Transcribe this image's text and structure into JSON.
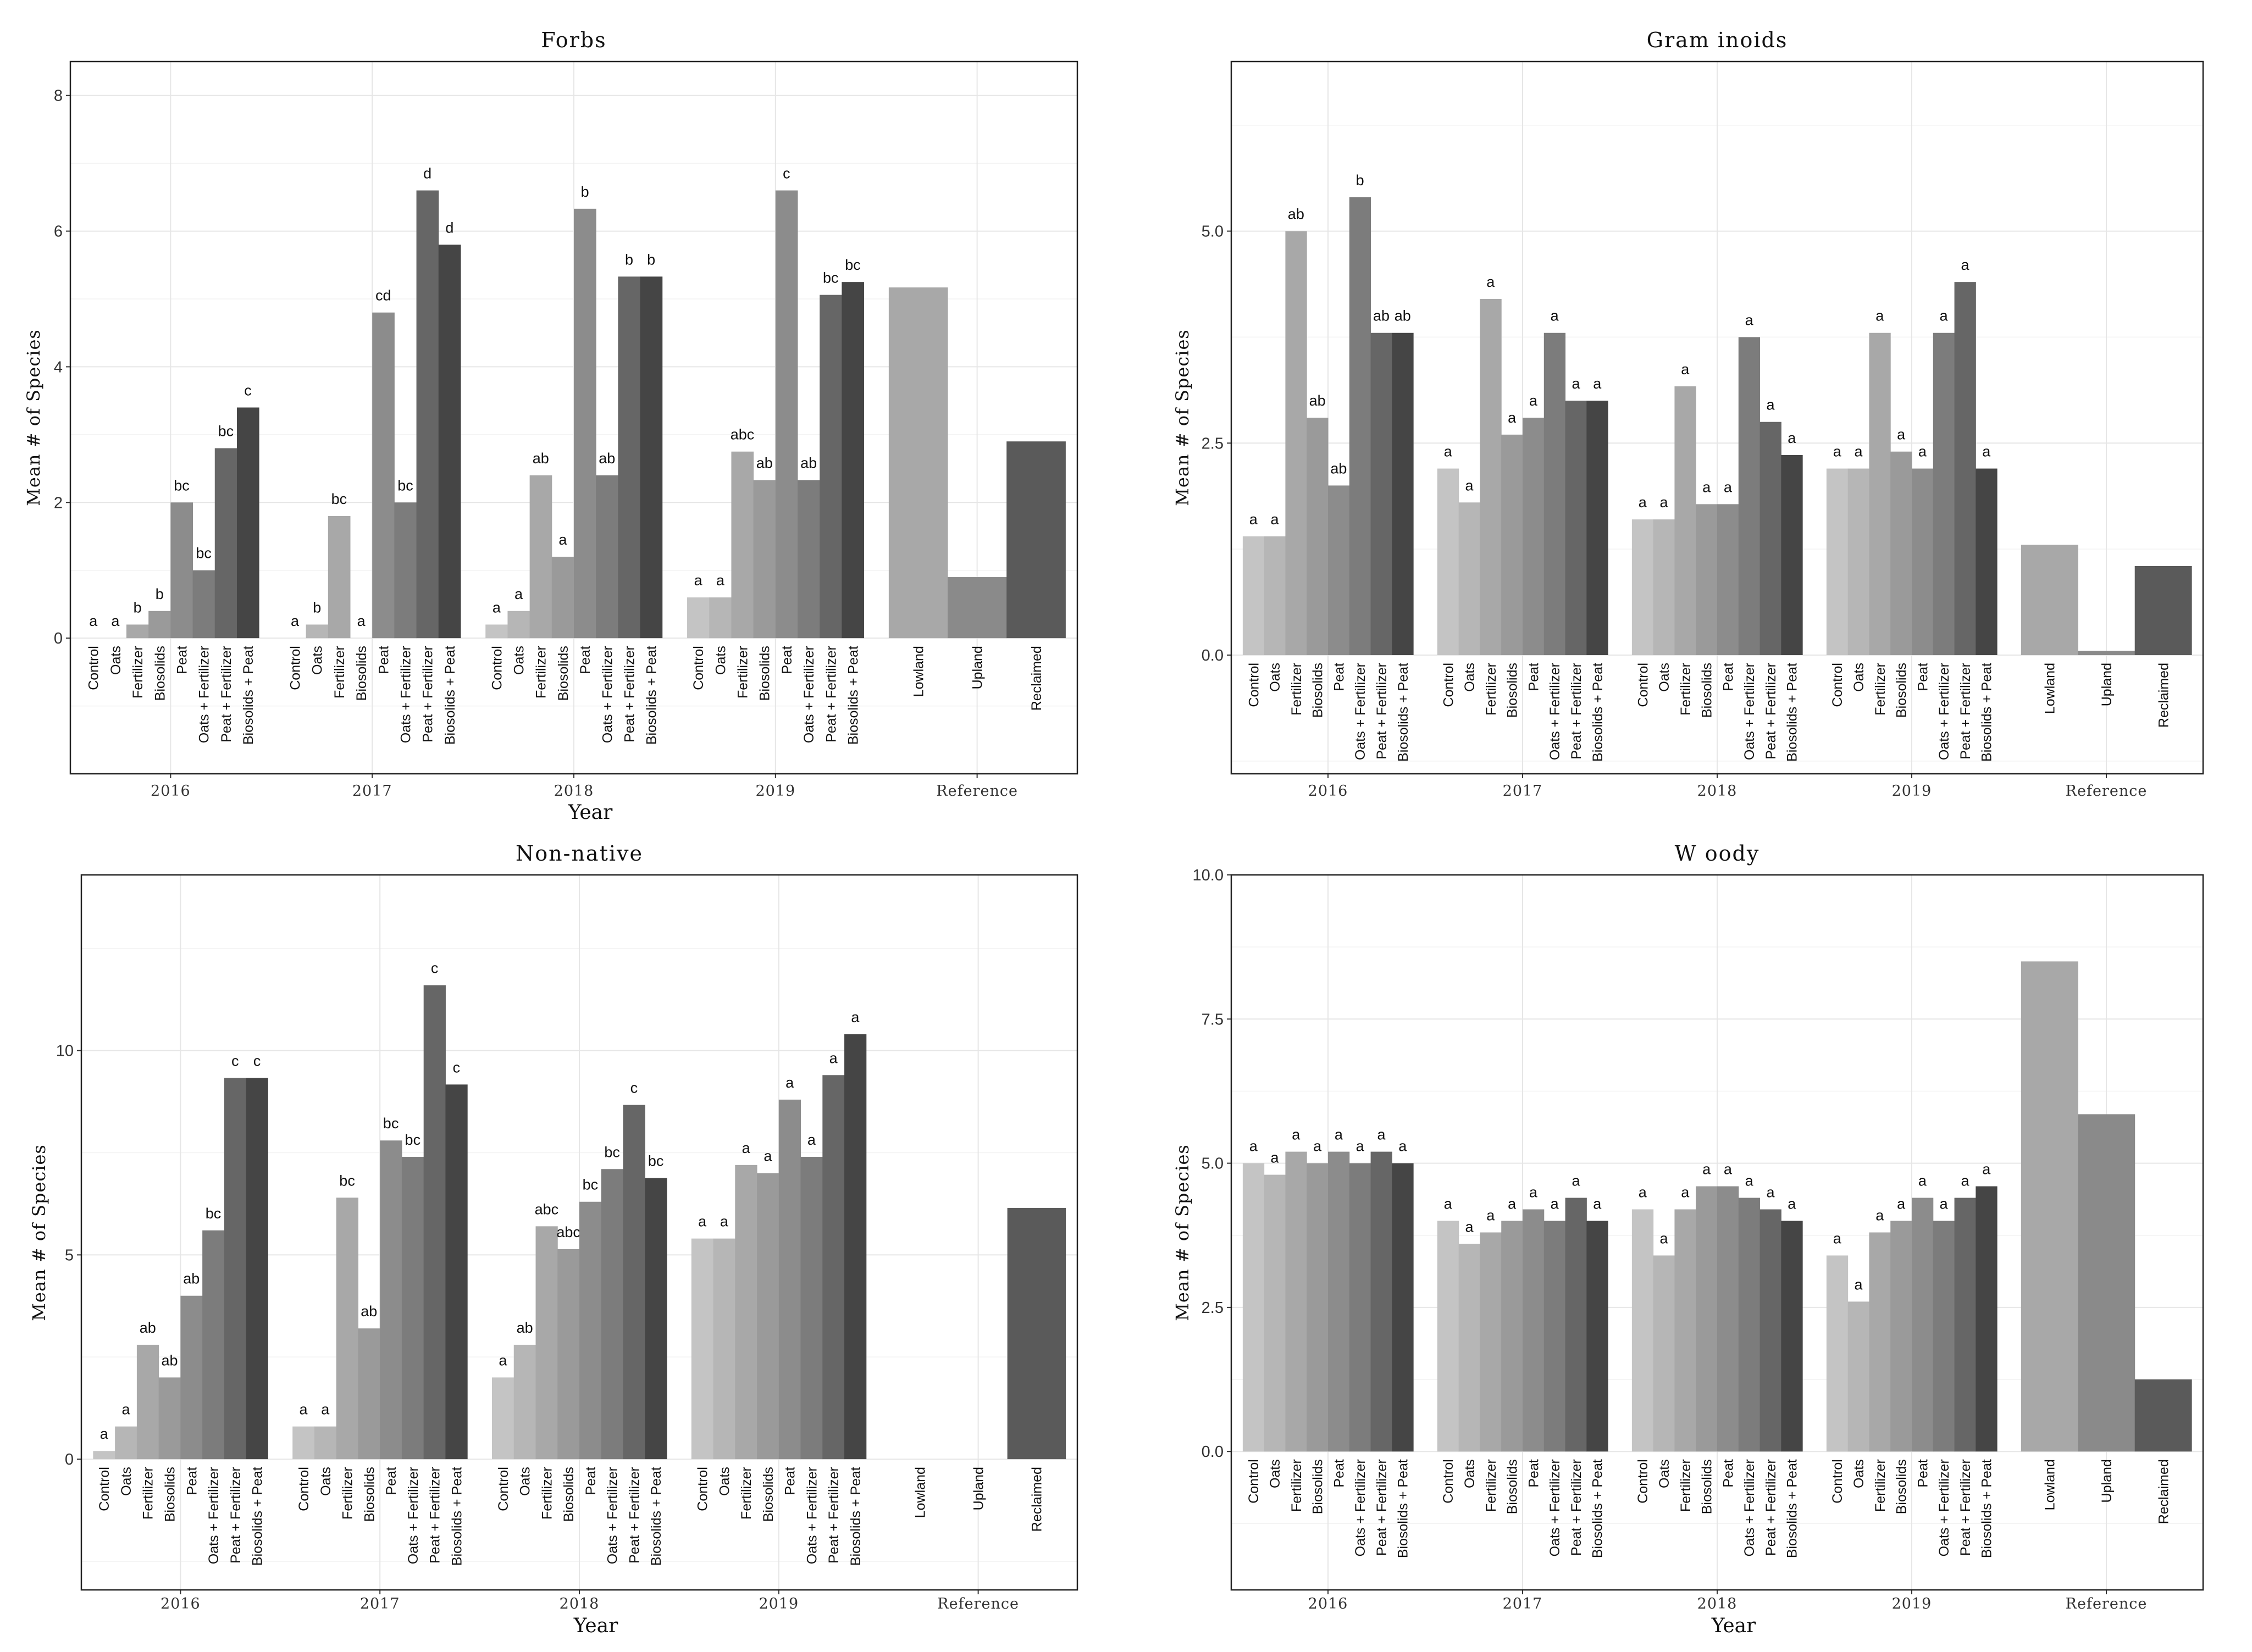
{
  "chart_data": [
    {
      "type": "bar",
      "title": "Forbs",
      "xlabel": "Year",
      "ylabel": "Mean # of Species",
      "ylim": [
        -2,
        8.5
      ],
      "yticks": [
        0,
        2,
        4,
        6,
        8
      ],
      "ytick_labels": [
        "0",
        "2",
        "4",
        "6",
        "8"
      ],
      "groups": [
        {
          "name": "2016",
          "categories": [
            "Control",
            "Oats",
            "Fertilizer",
            "Biosolids",
            "Peat",
            "Oats + Fertilizer",
            "Peat + Fertilizer",
            "Biosolids + Peat"
          ],
          "values": [
            0,
            0,
            0.2,
            0.4,
            2.0,
            1.0,
            2.8,
            3.4
          ],
          "letters": [
            "a",
            "a",
            "b",
            "b",
            "bc",
            "bc",
            "bc",
            "c"
          ]
        },
        {
          "name": "2017",
          "categories": [
            "Control",
            "Oats",
            "Fertilizer",
            "Biosolids",
            "Peat",
            "Oats + Fertilizer",
            "Peat + Fertilizer",
            "Biosolids + Peat"
          ],
          "values": [
            0,
            0.2,
            1.8,
            0,
            4.8,
            2.0,
            6.6,
            5.8
          ],
          "letters": [
            "a",
            "b",
            "bc",
            "a",
            "cd",
            "bc",
            "d",
            "d"
          ]
        },
        {
          "name": "2018",
          "categories": [
            "Control",
            "Oats",
            "Fertilizer",
            "Biosolids",
            "Peat",
            "Oats + Fertilizer",
            "Peat + Fertilizer",
            "Biosolids + Peat"
          ],
          "values": [
            0.2,
            0.4,
            2.4,
            1.2,
            6.33,
            2.4,
            5.33,
            5.33
          ],
          "letters": [
            "a",
            "a",
            "ab",
            "a",
            "b",
            "ab",
            "b",
            "b"
          ]
        },
        {
          "name": "2019",
          "categories": [
            "Control",
            "Oats",
            "Fertilizer",
            "Biosolids",
            "Peat",
            "Oats + Fertilizer",
            "Peat + Fertilizer",
            "Biosolids + Peat"
          ],
          "values": [
            0.6,
            0.6,
            2.75,
            2.33,
            6.6,
            2.33,
            5.06,
            5.25
          ],
          "letters": [
            "a",
            "a",
            "abc",
            "ab",
            "c",
            "ab",
            "bc",
            "bc"
          ]
        },
        {
          "name": "Reference",
          "categories": [
            "Lowland",
            "Upland",
            "Reclaimed"
          ],
          "values": [
            5.17,
            0.9,
            2.9
          ],
          "letters": []
        }
      ]
    },
    {
      "type": "bar",
      "title": "Gram inoids",
      "xlabel": "",
      "ylabel": "Mean # of Species",
      "ylim": [
        -1.4,
        7.0
      ],
      "yticks": [
        0,
        2.5,
        5.0
      ],
      "ytick_labels": [
        "0.0",
        "2.5",
        "5.0"
      ],
      "groups": [
        {
          "name": "2016",
          "categories": [
            "Control",
            "Oats",
            "Fertilizer",
            "Biosolids",
            "Peat",
            "Oats + Fertilizer",
            "Peat + Fertilizer",
            "Biosolids + Peat"
          ],
          "values": [
            1.4,
            1.4,
            5.0,
            2.8,
            2.0,
            5.4,
            3.8,
            3.8
          ],
          "letters": [
            "a",
            "a",
            "ab",
            "ab",
            "ab",
            "b",
            "ab",
            "ab"
          ]
        },
        {
          "name": "2017",
          "categories": [
            "Control",
            "Oats",
            "Fertilizer",
            "Biosolids",
            "Peat",
            "Oats + Fertilizer",
            "Peat + Fertilizer",
            "Biosolids + Peat"
          ],
          "values": [
            2.2,
            1.8,
            4.2,
            2.6,
            2.8,
            3.8,
            3.0,
            3.0
          ],
          "letters": [
            "a",
            "a",
            "a",
            "a",
            "a",
            "a",
            "a",
            "a"
          ]
        },
        {
          "name": "2018",
          "categories": [
            "Control",
            "Oats",
            "Fertilizer",
            "Biosolids",
            "Peat",
            "Oats + Fertilizer",
            "Peat + Fertilizer",
            "Biosolids + Peat"
          ],
          "values": [
            1.6,
            1.6,
            3.17,
            1.78,
            1.78,
            3.75,
            2.75,
            2.36
          ],
          "letters": [
            "a",
            "a",
            "a",
            "a",
            "a",
            "a",
            "a",
            "a"
          ]
        },
        {
          "name": "2019",
          "categories": [
            "Control",
            "Oats",
            "Fertilizer",
            "Biosolids",
            "Peat",
            "Oats + Fertilizer",
            "Peat + Fertilizer",
            "Biosolids + Peat"
          ],
          "values": [
            2.2,
            2.2,
            3.8,
            2.4,
            2.2,
            3.8,
            4.4,
            2.2
          ],
          "letters": [
            "a",
            "a",
            "a",
            "a",
            "a",
            "a",
            "a",
            "a"
          ]
        },
        {
          "name": "Reference",
          "categories": [
            "Lowland",
            "Upland",
            "Reclaimed"
          ],
          "values": [
            1.3,
            0.05,
            1.05
          ],
          "letters": []
        }
      ]
    },
    {
      "type": "bar",
      "title": "Non-native",
      "xlabel": "Year",
      "ylabel": "Mean # of Species",
      "ylim": [
        -3.2,
        14.3
      ],
      "yticks": [
        0,
        5,
        10
      ],
      "ytick_labels": [
        "0",
        "5",
        "10"
      ],
      "groups": [
        {
          "name": "2016",
          "categories": [
            "Control",
            "Oats",
            "Fertilizer",
            "Biosolids",
            "Peat",
            "Oats + Fertilizer",
            "Peat + Fertilizer",
            "Biosolids + Peat"
          ],
          "values": [
            0.2,
            0.8,
            2.8,
            2.0,
            4.0,
            5.6,
            9.33,
            9.33
          ],
          "letters": [
            "a",
            "a",
            "ab",
            "ab",
            "ab",
            "bc",
            "c",
            "c"
          ]
        },
        {
          "name": "2017",
          "categories": [
            "Control",
            "Oats",
            "Fertilizer",
            "Biosolids",
            "Peat",
            "Oats + Fertilizer",
            "Peat + Fertilizer",
            "Biosolids + Peat"
          ],
          "values": [
            0.8,
            0.8,
            6.4,
            3.2,
            7.8,
            7.4,
            11.6,
            9.17
          ],
          "letters": [
            "a",
            "a",
            "bc",
            "ab",
            "bc",
            "bc",
            "c",
            "c"
          ]
        },
        {
          "name": "2018",
          "categories": [
            "Control",
            "Oats",
            "Fertilizer",
            "Biosolids",
            "Peat",
            "Oats + Fertilizer",
            "Peat + Fertilizer",
            "Biosolids + Peat"
          ],
          "values": [
            2.0,
            2.8,
            5.7,
            5.14,
            6.3,
            7.1,
            8.67,
            6.88
          ],
          "letters": [
            "a",
            "ab",
            "abc",
            "abc",
            "bc",
            "bc",
            "c",
            "bc"
          ]
        },
        {
          "name": "2019",
          "categories": [
            "Control",
            "Oats",
            "Fertilizer",
            "Biosolids",
            "Peat",
            "Oats + Fertilizer",
            "Peat + Fertilizer",
            "Biosolids + Peat"
          ],
          "values": [
            5.4,
            5.4,
            7.2,
            7.0,
            8.8,
            7.4,
            9.4,
            10.4
          ],
          "letters": [
            "a",
            "a",
            "a",
            "a",
            "a",
            "a",
            "a",
            "a"
          ]
        },
        {
          "name": "Reference",
          "categories": [
            "Lowland",
            "Upland",
            "Reclaimed"
          ],
          "values": [
            0,
            0,
            6.15
          ],
          "letters": []
        }
      ]
    },
    {
      "type": "bar",
      "title": "W oody",
      "xlabel": "Year",
      "ylabel": "Mean # of Species",
      "ylim": [
        -2.4,
        10.0
      ],
      "yticks": [
        0,
        2.5,
        5.0,
        7.5,
        10.0
      ],
      "ytick_labels": [
        "0.0",
        "2.5",
        "5.0",
        "7.5",
        "10.0"
      ],
      "groups": [
        {
          "name": "2016",
          "categories": [
            "Control",
            "Oats",
            "Fertilizer",
            "Biosolids",
            "Peat",
            "Oats + Fertilizer",
            "Peat + Fertilizer",
            "Biosolids + Peat"
          ],
          "values": [
            5.0,
            4.8,
            5.2,
            5.0,
            5.2,
            5.0,
            5.2,
            5.0
          ],
          "letters": [
            "a",
            "a",
            "a",
            "a",
            "a",
            "a",
            "a",
            "a"
          ]
        },
        {
          "name": "2017",
          "categories": [
            "Control",
            "Oats",
            "Fertilizer",
            "Biosolids",
            "Peat",
            "Oats + Fertilizer",
            "Peat + Fertilizer",
            "Biosolids + Peat"
          ],
          "values": [
            4.0,
            3.6,
            3.8,
            4.0,
            4.2,
            4.0,
            4.4,
            4.0
          ],
          "letters": [
            "a",
            "a",
            "a",
            "a",
            "a",
            "a",
            "a",
            "a"
          ]
        },
        {
          "name": "2018",
          "categories": [
            "Control",
            "Oats",
            "Fertilizer",
            "Biosolids",
            "Peat",
            "Oats + Fertilizer",
            "Peat + Fertilizer",
            "Biosolids + Peat"
          ],
          "values": [
            4.2,
            3.4,
            4.2,
            4.6,
            4.6,
            4.4,
            4.2,
            4.0
          ],
          "letters": [
            "a",
            "a",
            "a",
            "a",
            "a",
            "a",
            "a",
            "a"
          ]
        },
        {
          "name": "2019",
          "categories": [
            "Control",
            "Oats",
            "Fertilizer",
            "Biosolids",
            "Peat",
            "Oats + Fertilizer",
            "Peat + Fertilizer",
            "Biosolids + Peat"
          ],
          "values": [
            3.4,
            2.6,
            3.8,
            4.0,
            4.4,
            4.0,
            4.4,
            4.6
          ],
          "letters": [
            "a",
            "a",
            "a",
            "a",
            "a",
            "a",
            "a",
            "a"
          ]
        },
        {
          "name": "Reference",
          "categories": [
            "Lowland",
            "Upland",
            "Reclaimed"
          ],
          "values": [
            8.5,
            5.85,
            1.25
          ],
          "letters": []
        }
      ]
    }
  ],
  "colors": {
    "treatments": [
      "#c4c4c4",
      "#b6b6b6",
      "#a8a8a8",
      "#9a9a9a",
      "#8c8c8c",
      "#7c7c7c",
      "#666666",
      "#454545"
    ],
    "reference": [
      "#a8a8a8",
      "#8a8a8a",
      "#5a5a5a"
    ],
    "grid": "#e6e6e6",
    "frame": "#222222"
  }
}
